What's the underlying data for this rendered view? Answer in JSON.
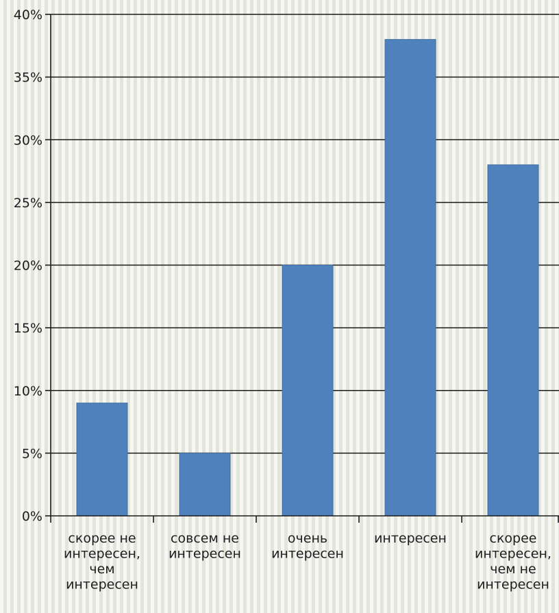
{
  "chart_data": {
    "type": "bar",
    "categories": [
      [
        "скорее не",
        "интересен,",
        "чем",
        "интересен"
      ],
      [
        "совсем не",
        "интересен"
      ],
      [
        "очень",
        "интересен"
      ],
      [
        "интересен"
      ],
      [
        "скорее",
        "интересен,",
        "чем не",
        "интересен"
      ]
    ],
    "values": [
      9,
      5,
      20,
      38,
      28
    ],
    "ylim": [
      0,
      40
    ],
    "yticks": [
      "0%",
      "5%",
      "10%",
      "15%",
      "20%",
      "25%",
      "30%",
      "35%",
      "40%"
    ],
    "title": "",
    "xlabel": "",
    "ylabel": "",
    "grid": true,
    "legend": "none",
    "bar_color": "#4f81bd"
  }
}
